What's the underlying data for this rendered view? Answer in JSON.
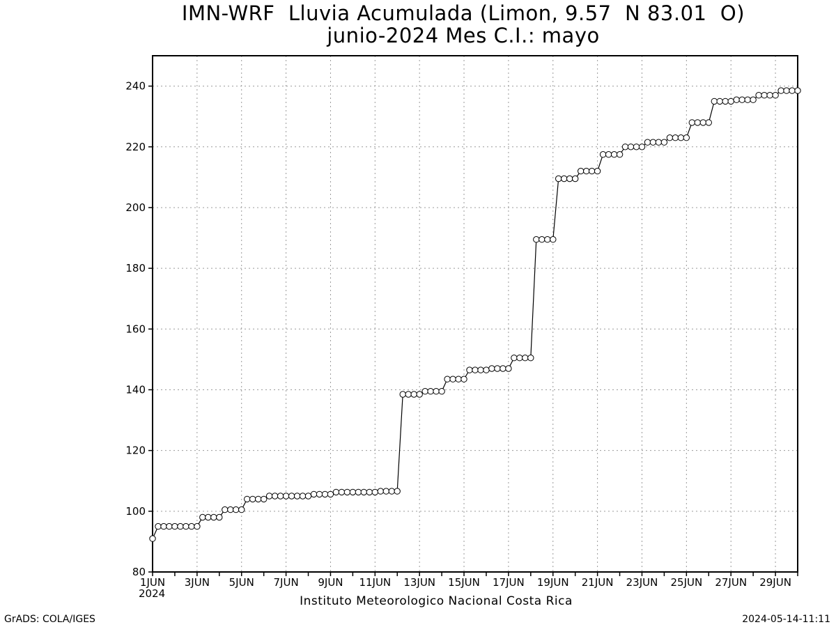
{
  "header": {
    "title_line1": "IMN-WRF  Lluvia Acumulada (Limon, 9.57  N 83.01  O)",
    "title_line2": "junio-2024 Mes C.I.: mayo"
  },
  "footer": {
    "credit": "GrADS: COLA/IGES",
    "institution": "Instituto Meteorologico Nacional Costa Rica",
    "timestamp": "2024-05-14-11:11",
    "year_label": "2024"
  },
  "chart_data": {
    "type": "line",
    "title": "IMN-WRF  Lluvia Acumulada (Limon, 9.57  N 83.01  O)",
    "subtitle": "junio-2024 Mes C.I.: mayo",
    "xlabel": "",
    "ylabel": "",
    "ylim": [
      80,
      250
    ],
    "yticks": [
      80,
      100,
      120,
      140,
      160,
      180,
      200,
      220,
      240
    ],
    "xlim_days": [
      1,
      30
    ],
    "xticks": [
      "1JUN",
      "3JUN",
      "5JUN",
      "7JUN",
      "9JUN",
      "11JUN",
      "13JUN",
      "15JUN",
      "17JUN",
      "19JUN",
      "21JUN",
      "23JUN",
      "25JUN",
      "27JUN",
      "29JUN"
    ],
    "x_tick_days": [
      1,
      3,
      5,
      7,
      9,
      11,
      13,
      15,
      17,
      19,
      21,
      23,
      25,
      27,
      29
    ],
    "grid": true,
    "marker": "circle-open",
    "line_color": "#000000",
    "time_step_hours": 6,
    "values": [
      91,
      95,
      95,
      95,
      95,
      95,
      95,
      95,
      95,
      98,
      98,
      98,
      98,
      100.5,
      100.5,
      100.5,
      100.5,
      104,
      104,
      104,
      104,
      105,
      105,
      105,
      105,
      105,
      105,
      105,
      105,
      105.6,
      105.6,
      105.6,
      105.6,
      106.3,
      106.3,
      106.3,
      106.3,
      106.3,
      106.3,
      106.3,
      106.3,
      106.6,
      106.6,
      106.6,
      106.6,
      138.5,
      138.5,
      138.5,
      138.5,
      139.5,
      139.5,
      139.5,
      139.5,
      143.5,
      143.5,
      143.5,
      143.5,
      146.5,
      146.5,
      146.5,
      146.5,
      147,
      147,
      147,
      147,
      150.5,
      150.5,
      150.5,
      150.5,
      189.5,
      189.5,
      189.5,
      189.5,
      209.5,
      209.5,
      209.5,
      209.5,
      212,
      212,
      212,
      212,
      217.5,
      217.5,
      217.5,
      217.5,
      220,
      220,
      220,
      220,
      221.5,
      221.5,
      221.5,
      221.5,
      223,
      223,
      223,
      223,
      228,
      228,
      228,
      228,
      235,
      235,
      235,
      235,
      235.5,
      235.5,
      235.5,
      235.5,
      237,
      237,
      237,
      237,
      238.5,
      238.5,
      238.5,
      238.5
    ]
  }
}
